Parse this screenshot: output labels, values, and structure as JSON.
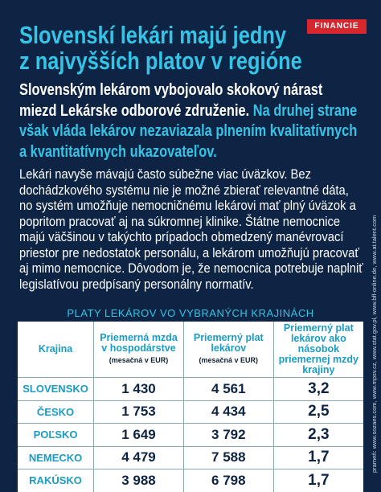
{
  "badge": "FINANCIE",
  "header": {
    "title_lines": [
      "Slovenskí lekári majú jedny",
      "z najvyšších platov v regióne"
    ]
  },
  "lead": {
    "white": "Slovenským lekárom vybojovalo skokový nárast miezd Lekárske odborové združenie.",
    "cyan": "Na druhej strane však vláda lekárov nezaviazala plnením kvalitatívnych a kvantitatívnych ukazovateľov."
  },
  "body": "Lekári navyše mávajú často súbežne viac úväzkov. Bez dochádzkového systému nie je možné zbierať relevantné dáta, no systém umožňuje nemocničnému lekárovi mať plný úväzok a popritom pracovať aj na súkromnej klinike. Štátne nemocnice majú väčšinou v takýchto prípadoch obmedzený manévrovací priestor pre nedostatok personálu, a lekárom umožňujú pracovať aj mimo nemocnice. Dôvodom je, že nemocnica potrebuje naplniť legislatívou predpísaný personálny normatív.",
  "table": {
    "title": "PLATY LEKÁROV VO VYBRANÝCH KRAJINÁCH",
    "columns": [
      {
        "label": "Krajina"
      },
      {
        "label": "Priemerná mzda v hospodárstve",
        "note": "(mesačná v EUR)"
      },
      {
        "label": "Priemerný plat lekárov",
        "note": "(mesačná v EUR)"
      },
      {
        "label": "Priemerný plat lekárov ako násobok priemernej mzdy krajiny"
      }
    ],
    "rows": [
      [
        "SLOVENSKO",
        "1 430",
        "4 561",
        "3,2"
      ],
      [
        "ČESKO",
        "1 753",
        "4 434",
        "2,5"
      ],
      [
        "POĽSKO",
        "1 649",
        "3 792",
        "2,3"
      ],
      [
        "NEMECKO",
        "4 479",
        "7 588",
        "1,7"
      ],
      [
        "RAKÚSKO",
        "3 988",
        "6 798",
        "1,7"
      ]
    ]
  },
  "source": "prameň: www.sozaes.com, www.mpsv.cz, www.stat.gov.pl, www.bfl-online.de, www.at.talent.com"
}
